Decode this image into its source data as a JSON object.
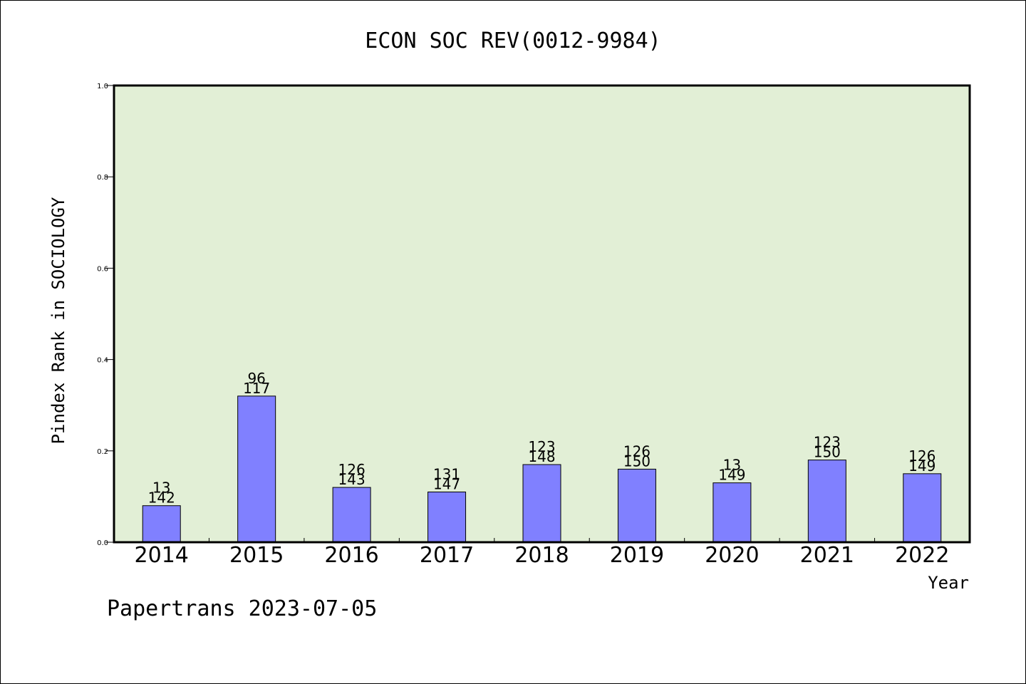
{
  "chart_data": {
    "type": "bar",
    "title": "ECON SOC REV(0012-9984)",
    "xlabel": "Year",
    "ylabel": "Pindex Rank in SOCIOLOGY",
    "categories": [
      "2014",
      "2015",
      "2016",
      "2017",
      "2018",
      "2019",
      "2020",
      "2021",
      "2022"
    ],
    "values": [
      0.08,
      0.32,
      0.12,
      0.11,
      0.17,
      0.16,
      0.13,
      0.18,
      0.15
    ],
    "label_top": [
      "13",
      "96",
      "126",
      "131",
      "123",
      "126",
      "13",
      "123",
      "126"
    ],
    "label_bottom": [
      "142",
      "117",
      "143",
      "147",
      "148",
      "150",
      "149",
      "150",
      "149"
    ],
    "ylim": [
      0,
      1.0
    ],
    "yticks": [
      "0.0",
      "0.2",
      "0.4",
      "0.6",
      "0.8",
      "1.0"
    ],
    "grid": false,
    "legend": "none",
    "colors": {
      "plot_background": "#e2efd6",
      "bar_fill": "#8080ff",
      "bar_stroke": "#000000"
    }
  },
  "footer": {
    "watermark": "Papertrans 2023-07-05"
  }
}
